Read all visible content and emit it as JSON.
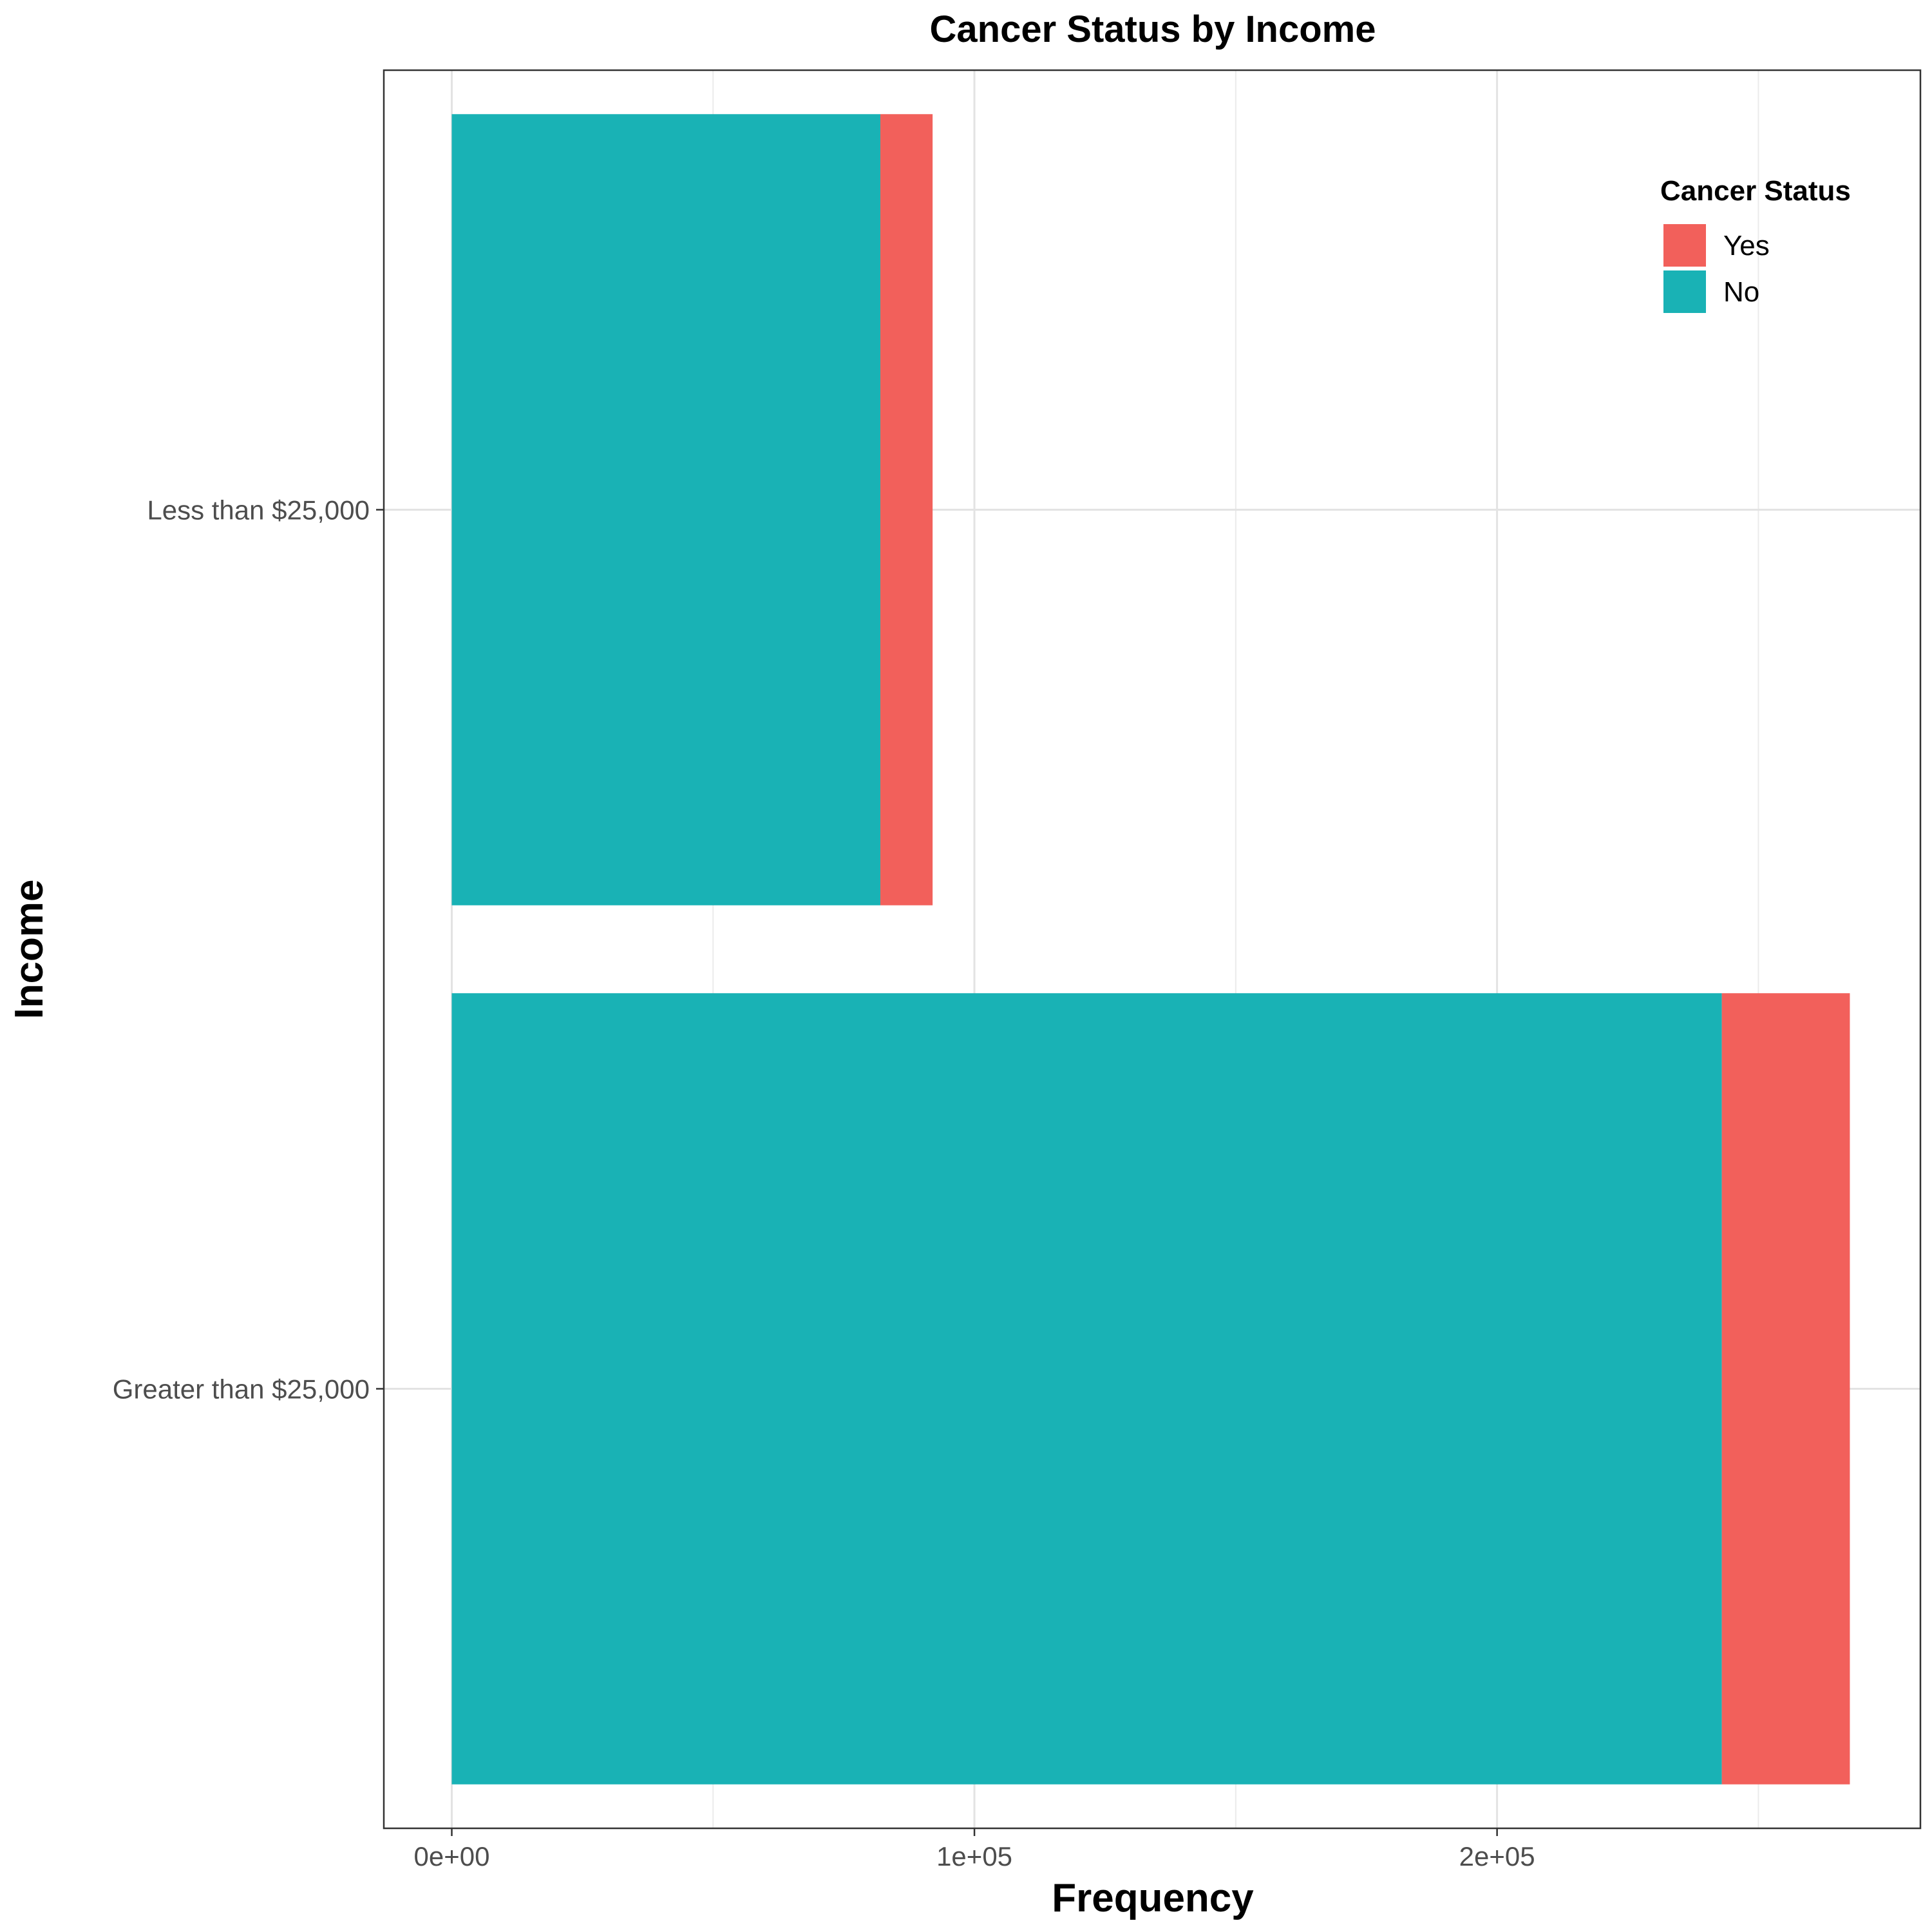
{
  "chart_data": {
    "type": "bar",
    "orientation": "horizontal",
    "stacked": true,
    "title": "Cancer Status by Income",
    "xlabel": "Frequency",
    "ylabel": "Income",
    "categories": [
      "Greater than $25,000",
      "Less than $25,000"
    ],
    "series": [
      {
        "name": "No",
        "color": "#19b2b5",
        "values": [
          243000,
          82000
        ]
      },
      {
        "name": "Yes",
        "color": "#f2605b",
        "values": [
          24500,
          10000
        ]
      }
    ],
    "xlim": [
      -13000,
      281000
    ],
    "x_ticks": [
      {
        "value": 0,
        "label": "0e+00"
      },
      {
        "value": 100000,
        "label": "1e+05"
      },
      {
        "value": 200000,
        "label": "2e+05"
      }
    ],
    "x_minor_gridlines": [
      50000,
      150000,
      250000
    ],
    "grid": true,
    "legend": {
      "title": "Cancer Status",
      "position": "top-right",
      "items": [
        {
          "label": "Yes",
          "color": "#f2605b"
        },
        {
          "label": "No",
          "color": "#19b2b5"
        }
      ]
    }
  }
}
